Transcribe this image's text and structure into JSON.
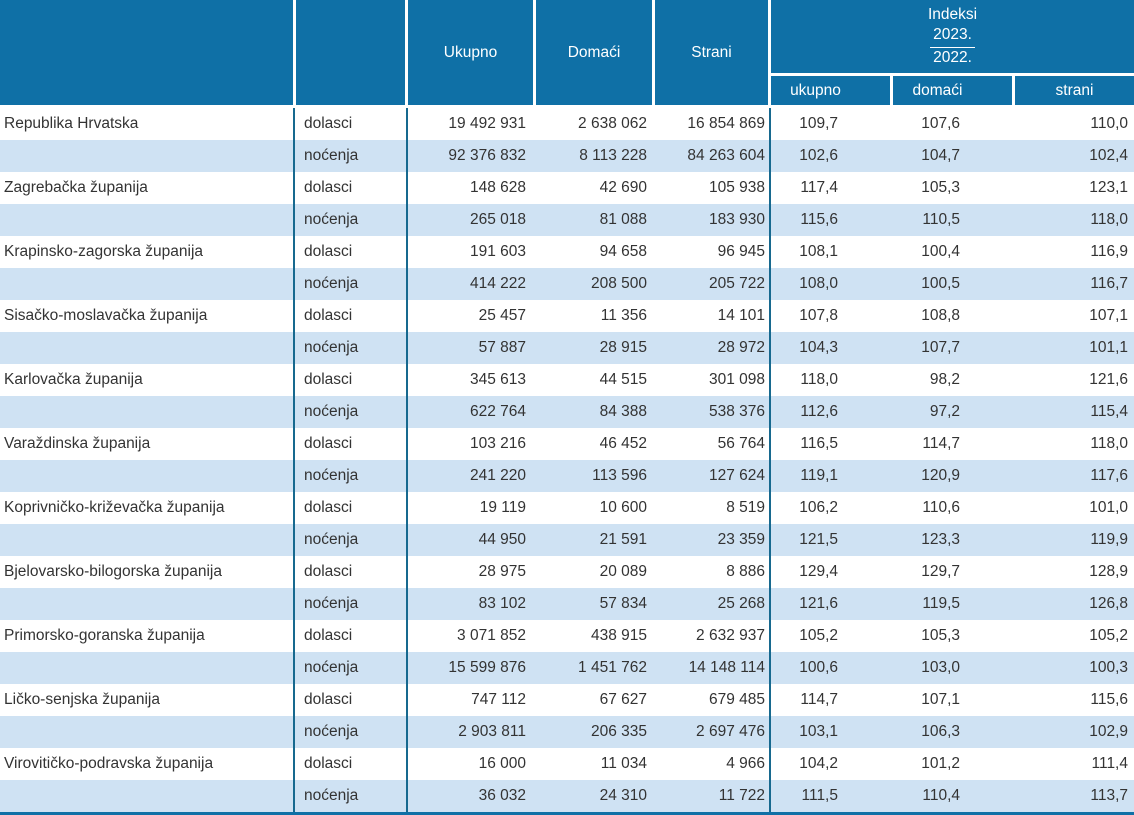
{
  "colors": {
    "header_bg": "#0f70a6",
    "row_alt_bg": "#cfe2f3",
    "row_bg": "#ffffff",
    "grid_line": "#17698f",
    "header_text": "#ffffff",
    "body_text": "#333333"
  },
  "table": {
    "header": {
      "col_ukupno": "Ukupno",
      "col_domaci": "Domaći",
      "col_strani": "Strani",
      "indeksi_title": "Indeksi",
      "indeksi_numerator": "2023.",
      "indeksi_denominator": "2022.",
      "sub_ukupno": "ukupno",
      "sub_domaci": "domaći",
      "sub_strani": "strani"
    },
    "row_type_labels": {
      "dolasci": "dolasci",
      "nocenja": "noćenja"
    },
    "regions": [
      {
        "name": "Republika Hrvatska",
        "dolasci": {
          "ukupno": "19 492 931",
          "domaci": "2 638 062",
          "strani": "16 854 869",
          "idx_ukupno": "109,7",
          "idx_domaci": "107,6",
          "idx_strani": "110,0"
        },
        "nocenja": {
          "ukupno": "92 376 832",
          "domaci": "8 113 228",
          "strani": "84 263 604",
          "idx_ukupno": "102,6",
          "idx_domaci": "104,7",
          "idx_strani": "102,4"
        }
      },
      {
        "name": "Zagrebačka županija",
        "dolasci": {
          "ukupno": "148 628",
          "domaci": "42 690",
          "strani": "105 938",
          "idx_ukupno": "117,4",
          "idx_domaci": "105,3",
          "idx_strani": "123,1"
        },
        "nocenja": {
          "ukupno": "265 018",
          "domaci": "81 088",
          "strani": "183 930",
          "idx_ukupno": "115,6",
          "idx_domaci": "110,5",
          "idx_strani": "118,0"
        }
      },
      {
        "name": "Krapinsko-zagorska županija",
        "dolasci": {
          "ukupno": "191 603",
          "domaci": "94 658",
          "strani": "96 945",
          "idx_ukupno": "108,1",
          "idx_domaci": "100,4",
          "idx_strani": "116,9"
        },
        "nocenja": {
          "ukupno": "414 222",
          "domaci": "208 500",
          "strani": "205 722",
          "idx_ukupno": "108,0",
          "idx_domaci": "100,5",
          "idx_strani": "116,7"
        }
      },
      {
        "name": "Sisačko-moslavačka županija",
        "dolasci": {
          "ukupno": "25 457",
          "domaci": "11 356",
          "strani": "14 101",
          "idx_ukupno": "107,8",
          "idx_domaci": "108,8",
          "idx_strani": "107,1"
        },
        "nocenja": {
          "ukupno": "57 887",
          "domaci": "28 915",
          "strani": "28 972",
          "idx_ukupno": "104,3",
          "idx_domaci": "107,7",
          "idx_strani": "101,1"
        }
      },
      {
        "name": "Karlovačka županija",
        "dolasci": {
          "ukupno": "345 613",
          "domaci": "44 515",
          "strani": "301 098",
          "idx_ukupno": "118,0",
          "idx_domaci": "98,2",
          "idx_strani": "121,6"
        },
        "nocenja": {
          "ukupno": "622 764",
          "domaci": "84 388",
          "strani": "538 376",
          "idx_ukupno": "112,6",
          "idx_domaci": "97,2",
          "idx_strani": "115,4"
        }
      },
      {
        "name": "Varaždinska županija",
        "dolasci": {
          "ukupno": "103 216",
          "domaci": "46 452",
          "strani": "56 764",
          "idx_ukupno": "116,5",
          "idx_domaci": "114,7",
          "idx_strani": "118,0"
        },
        "nocenja": {
          "ukupno": "241 220",
          "domaci": "113 596",
          "strani": "127 624",
          "idx_ukupno": "119,1",
          "idx_domaci": "120,9",
          "idx_strani": "117,6"
        }
      },
      {
        "name": "Koprivničko-križevačka županija",
        "dolasci": {
          "ukupno": "19 119",
          "domaci": "10 600",
          "strani": "8 519",
          "idx_ukupno": "106,2",
          "idx_domaci": "110,6",
          "idx_strani": "101,0"
        },
        "nocenja": {
          "ukupno": "44 950",
          "domaci": "21 591",
          "strani": "23 359",
          "idx_ukupno": "121,5",
          "idx_domaci": "123,3",
          "idx_strani": "119,9"
        }
      },
      {
        "name": "Bjelovarsko-bilogorska županija",
        "dolasci": {
          "ukupno": "28 975",
          "domaci": "20 089",
          "strani": "8 886",
          "idx_ukupno": "129,4",
          "idx_domaci": "129,7",
          "idx_strani": "128,9"
        },
        "nocenja": {
          "ukupno": "83 102",
          "domaci": "57 834",
          "strani": "25 268",
          "idx_ukupno": "121,6",
          "idx_domaci": "119,5",
          "idx_strani": "126,8"
        }
      },
      {
        "name": "Primorsko-goranska županija",
        "dolasci": {
          "ukupno": "3 071 852",
          "domaci": "438 915",
          "strani": "2 632 937",
          "idx_ukupno": "105,2",
          "idx_domaci": "105,3",
          "idx_strani": "105,2"
        },
        "nocenja": {
          "ukupno": "15 599 876",
          "domaci": "1 451 762",
          "strani": "14 148 114",
          "idx_ukupno": "100,6",
          "idx_domaci": "103,0",
          "idx_strani": "100,3"
        }
      },
      {
        "name": "Ličko-senjska županija",
        "dolasci": {
          "ukupno": "747 112",
          "domaci": "67 627",
          "strani": "679 485",
          "idx_ukupno": "114,7",
          "idx_domaci": "107,1",
          "idx_strani": "115,6"
        },
        "nocenja": {
          "ukupno": "2 903 811",
          "domaci": "206 335",
          "strani": "2 697 476",
          "idx_ukupno": "103,1",
          "idx_domaci": "106,3",
          "idx_strani": "102,9"
        }
      },
      {
        "name": "Virovitičko-podravska županija",
        "dolasci": {
          "ukupno": "16 000",
          "domaci": "11 034",
          "strani": "4 966",
          "idx_ukupno": "104,2",
          "idx_domaci": "101,2",
          "idx_strani": "111,4"
        },
        "nocenja": {
          "ukupno": "36 032",
          "domaci": "24 310",
          "strani": "11 722",
          "idx_ukupno": "111,5",
          "idx_domaci": "110,4",
          "idx_strani": "113,7"
        }
      }
    ]
  }
}
